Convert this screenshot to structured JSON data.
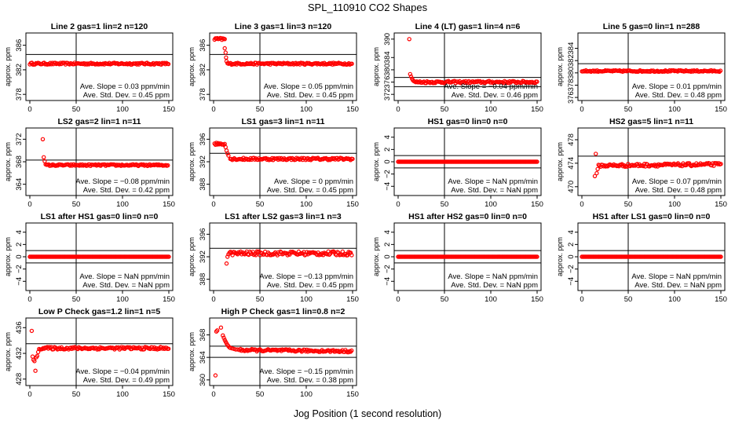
{
  "figure": {
    "title": "SPL_110910  CO2 Shapes",
    "xlabel": "Jog Position (1 second resolution)",
    "ylabel": "approx. ppm",
    "marker_color": "#ff0000"
  },
  "chart_data": [
    {
      "type": "scatter",
      "title": "Line 2 gas=1 lin=2 n=120",
      "xlim": [
        0,
        150
      ],
      "xticks": [
        0,
        50,
        100,
        150
      ],
      "ylim": [
        377,
        388
      ],
      "yticks": [
        378,
        382,
        386
      ],
      "hlines": [
        384.5
      ],
      "vline": 50,
      "slope_text": "Ave. Slope =  0.03  ppm/min",
      "std_text": "Ave. Std. Dev. =  0.45  ppm",
      "series": {
        "segments": [
          {
            "x0": 0,
            "x1": 150,
            "y0": 383,
            "y1": 383,
            "noise": 0.15,
            "step": 1.1
          }
        ],
        "extra": []
      }
    },
    {
      "type": "scatter",
      "title": "Line 3 gas=1 lin=3 n=120",
      "xlim": [
        0,
        150
      ],
      "xticks": [
        0,
        50,
        100,
        150
      ],
      "ylim": [
        377,
        388
      ],
      "yticks": [
        378,
        382,
        386
      ],
      "hlines": [
        384.5
      ],
      "vline": 50,
      "slope_text": "Ave. Slope =  0.05  ppm/min",
      "std_text": "Ave. Std. Dev. =  0.45  ppm",
      "series": {
        "segments": [
          {
            "x0": 1,
            "x1": 12,
            "y0": 387,
            "y1": 387,
            "noise": 0.2,
            "step": 1
          },
          {
            "x0": 15,
            "x1": 150,
            "y0": 383,
            "y1": 383,
            "noise": 0.15,
            "step": 1.1
          }
        ],
        "extra": [
          [
            12,
            385.5
          ],
          [
            13,
            384.8
          ],
          [
            13.5,
            384
          ],
          [
            14,
            383.4
          ]
        ]
      }
    },
    {
      "type": "scatter",
      "title": "Line 4 (LT) gas=1 lin=4 n=6",
      "xlim": [
        0,
        150
      ],
      "xticks": [
        0,
        50,
        100,
        150
      ],
      "ylim": [
        370,
        392
      ],
      "yticks": [
        372,
        376,
        380,
        384,
        390
      ],
      "hlines": [
        377.5,
        374.5
      ],
      "vline": 50,
      "slope_text": "Ave. Slope = −0.04  ppm/min",
      "std_text": "Ave. Std. Dev. =  0.46  ppm",
      "series": {
        "segments": [
          {
            "x0": 18,
            "x1": 150,
            "y0": 376,
            "y1": 376,
            "noise": 0.35,
            "step": 1.1
          }
        ],
        "extra": [
          [
            12,
            390
          ],
          [
            13,
            378.6
          ],
          [
            14,
            377.8
          ],
          [
            15,
            377.1
          ],
          [
            16,
            376.6
          ],
          [
            17,
            376.3
          ]
        ]
      }
    },
    {
      "type": "scatter",
      "title": "Line 5 gas=0 lin=1 n=288",
      "xlim": [
        0,
        150
      ],
      "xticks": [
        0,
        50,
        100,
        150
      ],
      "ylim": [
        375.5,
        386.5
      ],
      "yticks": [
        376,
        378,
        380,
        382,
        384
      ],
      "hlines": [
        381.5
      ],
      "vline": 50,
      "slope_text": "Ave. Slope =  0.01  ppm/min",
      "std_text": "Ave. Std. Dev. =  0.48  ppm",
      "series": {
        "segments": [
          {
            "x0": 0,
            "x1": 150,
            "y0": 380.3,
            "y1": 380.3,
            "noise": 0.12,
            "step": 1.1
          }
        ],
        "extra": []
      }
    },
    {
      "type": "scatter",
      "title": "LS2 gas=2 lin=1 n=11",
      "xlim": [
        0,
        150
      ],
      "xticks": [
        0,
        50,
        100,
        150
      ],
      "ylim": [
        362,
        374
      ],
      "yticks": [
        364,
        368,
        372
      ],
      "hlines": [
        368.3
      ],
      "vline": 50,
      "slope_text": "Ave. Slope = −0.08  ppm/min",
      "std_text": "Ave. Std. Dev. =  0.42  ppm",
      "series": {
        "segments": [
          {
            "x0": 17,
            "x1": 150,
            "y0": 367.4,
            "y1": 367.4,
            "noise": 0.15,
            "step": 1.1
          }
        ],
        "extra": [
          [
            14,
            372
          ],
          [
            15,
            368.8
          ],
          [
            16,
            368.1
          ]
        ]
      }
    },
    {
      "type": "scatter",
      "title": "LS1 gas=3 lin=1 n=11",
      "xlim": [
        0,
        150
      ],
      "xticks": [
        0,
        50,
        100,
        150
      ],
      "ylim": [
        386,
        398
      ],
      "yticks": [
        388,
        392,
        396
      ],
      "hlines": [
        393.5
      ],
      "vline": 50,
      "slope_text": "Ave. Slope =  0  ppm/min",
      "std_text": "Ave. Std. Dev. =  0.45  ppm",
      "series": {
        "segments": [
          {
            "x0": 1,
            "x1": 12,
            "y0": 395.2,
            "y1": 395.2,
            "noise": 0.2,
            "step": 1
          },
          {
            "x0": 18,
            "x1": 150,
            "y0": 392.5,
            "y1": 392.5,
            "noise": 0.2,
            "step": 1.1
          }
        ],
        "extra": [
          [
            13,
            394.6
          ],
          [
            14,
            394
          ],
          [
            15,
            393.5
          ],
          [
            16,
            393.1
          ]
        ]
      }
    },
    {
      "type": "scatter",
      "title": "HS1 gas=0 lin=0 n=0",
      "xlim": [
        0,
        150
      ],
      "xticks": [
        0,
        50,
        100,
        150
      ],
      "ylim": [
        -5.5,
        5.5
      ],
      "yticks": [
        -4,
        -2,
        0,
        2,
        4
      ],
      "hlines": [
        1,
        -1
      ],
      "vline": 50,
      "slope_text": "Ave. Slope =  NaN  ppm/min",
      "std_text": "Ave. Std. Dev. =  NaN  ppm",
      "series": {
        "segments": [
          {
            "x0": 0,
            "x1": 150,
            "y0": 0,
            "y1": 0,
            "noise": 0,
            "step": 1
          }
        ],
        "extra": []
      }
    },
    {
      "type": "scatter",
      "title": "HS2 gas=5 lin=1 n=11",
      "xlim": [
        0,
        150
      ],
      "xticks": [
        0,
        50,
        100,
        150
      ],
      "ylim": [
        468.5,
        480
      ],
      "yticks": [
        470,
        474,
        478
      ],
      "hlines": [
        475.2
      ],
      "vline": 50,
      "slope_text": "Ave. Slope =  0.07  ppm/min",
      "std_text": "Ave. Std. Dev. =  0.48  ppm",
      "series": {
        "segments": [
          {
            "x0": 18,
            "x1": 150,
            "y0": 473.6,
            "y1": 473.8,
            "noise": 0.25,
            "step": 1.1
          }
        ],
        "extra": [
          [
            14,
            471.8
          ],
          [
            15,
            475.6
          ],
          [
            16,
            472.3
          ],
          [
            17,
            473
          ]
        ]
      }
    },
    {
      "type": "scatter",
      "title": "LS1 after HS1 gas=0 lin=0 n=0",
      "xlim": [
        0,
        150
      ],
      "xticks": [
        0,
        50,
        100,
        150
      ],
      "ylim": [
        -5.5,
        5.5
      ],
      "yticks": [
        -4,
        -2,
        0,
        2,
        4
      ],
      "hlines": [
        1,
        -1
      ],
      "vline": 50,
      "slope_text": "Ave. Slope =  NaN  ppm/min",
      "std_text": "Ave. Std. Dev. =  NaN  ppm",
      "series": {
        "segments": [
          {
            "x0": 0,
            "x1": 150,
            "y0": 0,
            "y1": 0,
            "noise": 0,
            "step": 1
          }
        ],
        "extra": []
      }
    },
    {
      "type": "scatter",
      "title": "LS1 after LS2 gas=3 lin=1 n=3",
      "xlim": [
        0,
        150
      ],
      "xticks": [
        0,
        50,
        100,
        150
      ],
      "ylim": [
        386,
        398
      ],
      "yticks": [
        388,
        392,
        396
      ],
      "hlines": [
        393.5
      ],
      "vline": 50,
      "slope_text": "Ave. Slope = −0.13  ppm/min",
      "std_text": "Ave. Std. Dev. =  0.45  ppm",
      "series": {
        "segments": [
          {
            "x0": 16,
            "x1": 150,
            "y0": 392.6,
            "y1": 392.6,
            "noise": 0.35,
            "step": 1.1
          }
        ],
        "extra": [
          [
            14,
            390.8
          ],
          [
            15,
            392
          ]
        ]
      }
    },
    {
      "type": "scatter",
      "title": "HS1 after HS2 gas=0 lin=0 n=0",
      "xlim": [
        0,
        150
      ],
      "xticks": [
        0,
        50,
        100,
        150
      ],
      "ylim": [
        -5.5,
        5.5
      ],
      "yticks": [
        -4,
        -2,
        0,
        2,
        4
      ],
      "hlines": [
        1,
        -1
      ],
      "vline": 50,
      "slope_text": "Ave. Slope =  NaN  ppm/min",
      "std_text": "Ave. Std. Dev. =  NaN  ppm",
      "series": {
        "segments": [
          {
            "x0": 0,
            "x1": 150,
            "y0": 0,
            "y1": 0,
            "noise": 0,
            "step": 1
          }
        ],
        "extra": []
      }
    },
    {
      "type": "scatter",
      "title": "HS1 after LS1 gas=0 lin=0 n=0",
      "xlim": [
        0,
        150
      ],
      "xticks": [
        0,
        50,
        100,
        150
      ],
      "ylim": [
        -5.5,
        5.5
      ],
      "yticks": [
        -4,
        -2,
        0,
        2,
        4
      ],
      "hlines": [
        1,
        -1
      ],
      "vline": 50,
      "slope_text": "Ave. Slope =  NaN  ppm/min",
      "std_text": "Ave. Std. Dev. =  NaN  ppm",
      "series": {
        "segments": [
          {
            "x0": 0,
            "x1": 150,
            "y0": 0,
            "y1": 0,
            "noise": 0,
            "step": 1
          }
        ],
        "extra": []
      }
    },
    {
      "type": "scatter",
      "title": "Low P Check gas=1.2 lin=1 n=5",
      "xlim": [
        0,
        150
      ],
      "xticks": [
        0,
        50,
        100,
        150
      ],
      "ylim": [
        427,
        437.5
      ],
      "yticks": [
        428,
        432,
        436
      ],
      "hlines": [
        433.5
      ],
      "vline": 50,
      "slope_text": "Ave. Slope = −0.04  ppm/min",
      "std_text": "Ave. Std. Dev. =  0.49  ppm",
      "series": {
        "segments": [
          {
            "x0": 10,
            "x1": 150,
            "y0": 432.8,
            "y1": 432.8,
            "noise": 0.2,
            "step": 1.1
          }
        ],
        "extra": [
          [
            2,
            435.5
          ],
          [
            3,
            431.5
          ],
          [
            4,
            431
          ],
          [
            5,
            430.8
          ],
          [
            6,
            429.3
          ],
          [
            7,
            431.4
          ],
          [
            8,
            431.6
          ],
          [
            9,
            432.2
          ]
        ]
      }
    },
    {
      "type": "scatter",
      "title": "High P Check gas=1 lin=0.8 n=2",
      "xlim": [
        0,
        150
      ],
      "xticks": [
        0,
        50,
        100,
        150
      ],
      "ylim": [
        359,
        371
      ],
      "yticks": [
        360,
        364,
        368
      ],
      "hlines": [
        366,
        364
      ],
      "vline": 50,
      "slope_text": "Ave. Slope = −0.15  ppm/min",
      "std_text": "Ave. Std. Dev. =  0.38  ppm",
      "series": {
        "segments": [
          {
            "x0": 28,
            "x1": 150,
            "y0": 365.3,
            "y1": 365.1,
            "noise": 0.2,
            "step": 1.1
          }
        ],
        "extra": [
          [
            2,
            360.8
          ],
          [
            3,
            368.6
          ],
          [
            4,
            368.8
          ],
          [
            8,
            369.3
          ],
          [
            10,
            367.9
          ],
          [
            11,
            367.5
          ],
          [
            12,
            367.1
          ],
          [
            13,
            366.8
          ],
          [
            14,
            366.5
          ],
          [
            15,
            366.2
          ],
          [
            16,
            366
          ],
          [
            17,
            365.8
          ],
          [
            18,
            365.7
          ],
          [
            20,
            365.6
          ],
          [
            22,
            365.5
          ],
          [
            24,
            365.4
          ],
          [
            26,
            365.4
          ]
        ]
      }
    }
  ]
}
